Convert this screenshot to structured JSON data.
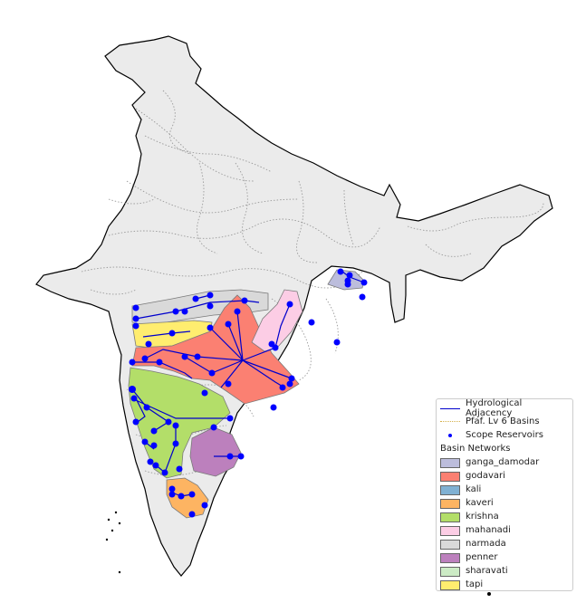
{
  "legend": {
    "items": [
      {
        "label": "Hydrological Adjacency",
        "symbol": "line",
        "color": "#0000cc"
      },
      {
        "label": "Pfaf. Lv 6 Basins",
        "symbol": "dotted-line",
        "color": "#d4b04a"
      },
      {
        "label": "Scope Reservoirs",
        "symbol": "point",
        "color": "#0000ff"
      }
    ],
    "networks_title": "Basin Networks",
    "networks": [
      {
        "label": "ganga_damodar",
        "color": "#bcbddc"
      },
      {
        "label": "godavari",
        "color": "#fb8072"
      },
      {
        "label": "kali",
        "color": "#80b1d3"
      },
      {
        "label": "kaveri",
        "color": "#fdb462"
      },
      {
        "label": "krishna",
        "color": "#b3de69"
      },
      {
        "label": "mahanadi",
        "color": "#fccde5"
      },
      {
        "label": "narmada",
        "color": "#d9d9d9"
      },
      {
        "label": "penner",
        "color": "#bc80bd"
      },
      {
        "label": "sharavati",
        "color": "#ccebc5"
      },
      {
        "label": "tapi",
        "color": "#ffed6f"
      }
    ]
  },
  "colors": {
    "land": "#ebebeb",
    "border": "#000000",
    "basin_line": "#9a9a9a",
    "adjacency": "#0000cc",
    "reservoir": "#0000ff"
  }
}
